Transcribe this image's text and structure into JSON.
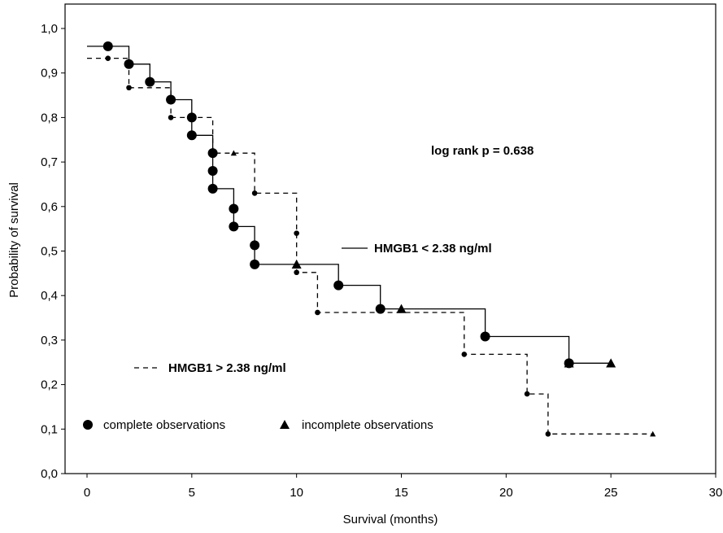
{
  "chart_data": {
    "type": "line",
    "xlabel": "Survival (months)",
    "ylabel": "Probability of survival",
    "xlim": [
      0,
      30
    ],
    "ylim": [
      0,
      1.0
    ],
    "x_ticks": [
      0,
      5,
      10,
      15,
      20,
      25,
      30
    ],
    "x_tick_labels": [
      "0",
      "5",
      "10",
      "15",
      "20",
      "25",
      "30"
    ],
    "y_ticks": [
      0.0,
      0.1,
      0.2,
      0.3,
      0.4,
      0.5,
      0.6,
      0.7,
      0.8,
      0.9,
      1.0
    ],
    "y_tick_labels": [
      "0,0",
      "0,1",
      "0,2",
      "0,3",
      "0,4",
      "0,5",
      "0,6",
      "0,7",
      "0,8",
      "0,9",
      "1,0"
    ],
    "grid": false,
    "annotation": "log rank p = 0.638",
    "series": [
      {
        "name": "HMGB1 < 2.38 ng/ml",
        "line_style": "solid",
        "steps": [
          [
            0,
            0.96
          ],
          [
            1,
            0.96
          ],
          [
            2,
            0.92
          ],
          [
            3,
            0.88
          ],
          [
            4,
            0.84
          ],
          [
            5,
            0.8
          ],
          [
            5,
            0.76
          ],
          [
            6,
            0.72
          ],
          [
            6,
            0.68
          ],
          [
            6,
            0.64
          ],
          [
            7,
            0.595
          ],
          [
            7,
            0.555
          ],
          [
            8,
            0.513
          ],
          [
            8,
            0.47
          ],
          [
            12,
            0.423
          ],
          [
            14,
            0.37
          ],
          [
            19,
            0.308
          ],
          [
            23,
            0.248
          ],
          [
            25,
            0.248
          ]
        ],
        "complete": [
          [
            1,
            0.96
          ],
          [
            2,
            0.92
          ],
          [
            3,
            0.88
          ],
          [
            4,
            0.84
          ],
          [
            5,
            0.8
          ],
          [
            5,
            0.76
          ],
          [
            6,
            0.72
          ],
          [
            6,
            0.68
          ],
          [
            6,
            0.64
          ],
          [
            7,
            0.595
          ],
          [
            7,
            0.555
          ],
          [
            8,
            0.513
          ],
          [
            8,
            0.47
          ],
          [
            12,
            0.423
          ],
          [
            14,
            0.37
          ],
          [
            19,
            0.308
          ],
          [
            23,
            0.248
          ]
        ],
        "censored": [
          [
            10,
            0.47
          ],
          [
            15,
            0.37
          ],
          [
            23,
            0.248
          ],
          [
            25,
            0.248
          ]
        ]
      },
      {
        "name": "HMGB1 > 2.38 ng/ml",
        "line_style": "dashed",
        "steps": [
          [
            0,
            0.933
          ],
          [
            1,
            0.933
          ],
          [
            2,
            0.867
          ],
          [
            4,
            0.8
          ],
          [
            6,
            0.72
          ],
          [
            8,
            0.63
          ],
          [
            10,
            0.54
          ],
          [
            10,
            0.452
          ],
          [
            11,
            0.362
          ],
          [
            18,
            0.268
          ],
          [
            21,
            0.179
          ],
          [
            22,
            0.089
          ],
          [
            27,
            0.089
          ]
        ],
        "complete": [
          [
            1,
            0.933
          ],
          [
            2,
            0.867
          ],
          [
            4,
            0.8
          ],
          [
            8,
            0.63
          ],
          [
            10,
            0.54
          ],
          [
            10,
            0.452
          ],
          [
            11,
            0.362
          ],
          [
            18,
            0.268
          ],
          [
            21,
            0.179
          ],
          [
            22,
            0.089
          ]
        ],
        "censored": [
          [
            6,
            0.64
          ],
          [
            7,
            0.72
          ],
          [
            10,
            0.47
          ],
          [
            27,
            0.089
          ]
        ]
      }
    ],
    "legend": {
      "complete_label": "complete observations",
      "incomplete_label": "incomplete observations"
    }
  }
}
